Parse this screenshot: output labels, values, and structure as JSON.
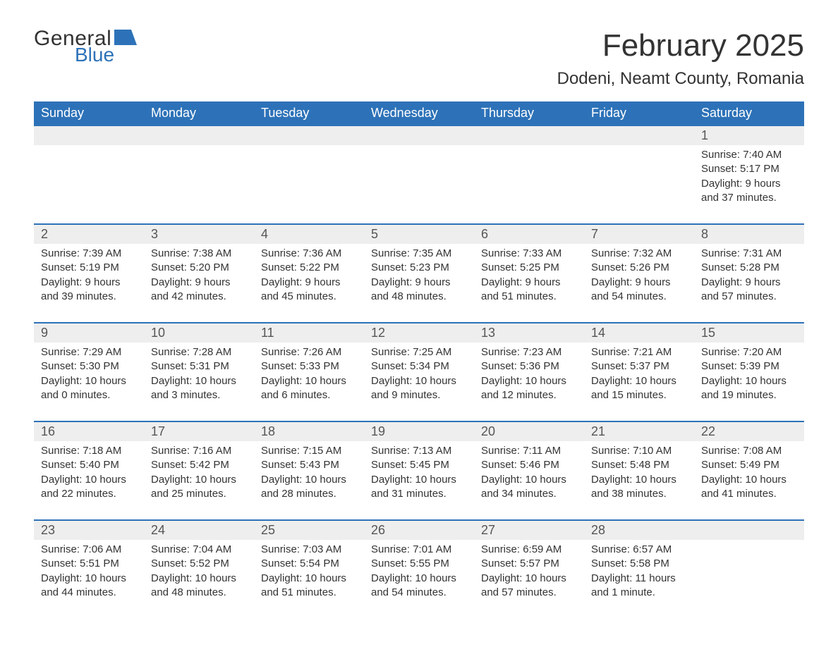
{
  "logo": {
    "word1": "General",
    "word2": "Blue"
  },
  "title": "February 2025",
  "location": "Dodeni, Neamt County, Romania",
  "colors": {
    "header_bg": "#2d72b8",
    "header_text": "#ffffff",
    "daynum_bg": "#eeeeee",
    "daynum_border": "#2d72b8",
    "body_text": "#333333",
    "logo_blue": "#2d72b8"
  },
  "weekdays": [
    "Sunday",
    "Monday",
    "Tuesday",
    "Wednesday",
    "Thursday",
    "Friday",
    "Saturday"
  ],
  "weeks": [
    [
      null,
      null,
      null,
      null,
      null,
      null,
      {
        "n": "1",
        "sr": "Sunrise: 7:40 AM",
        "ss": "Sunset: 5:17 PM",
        "dl": "Daylight: 9 hours and 37 minutes."
      }
    ],
    [
      {
        "n": "2",
        "sr": "Sunrise: 7:39 AM",
        "ss": "Sunset: 5:19 PM",
        "dl": "Daylight: 9 hours and 39 minutes."
      },
      {
        "n": "3",
        "sr": "Sunrise: 7:38 AM",
        "ss": "Sunset: 5:20 PM",
        "dl": "Daylight: 9 hours and 42 minutes."
      },
      {
        "n": "4",
        "sr": "Sunrise: 7:36 AM",
        "ss": "Sunset: 5:22 PM",
        "dl": "Daylight: 9 hours and 45 minutes."
      },
      {
        "n": "5",
        "sr": "Sunrise: 7:35 AM",
        "ss": "Sunset: 5:23 PM",
        "dl": "Daylight: 9 hours and 48 minutes."
      },
      {
        "n": "6",
        "sr": "Sunrise: 7:33 AM",
        "ss": "Sunset: 5:25 PM",
        "dl": "Daylight: 9 hours and 51 minutes."
      },
      {
        "n": "7",
        "sr": "Sunrise: 7:32 AM",
        "ss": "Sunset: 5:26 PM",
        "dl": "Daylight: 9 hours and 54 minutes."
      },
      {
        "n": "8",
        "sr": "Sunrise: 7:31 AM",
        "ss": "Sunset: 5:28 PM",
        "dl": "Daylight: 9 hours and 57 minutes."
      }
    ],
    [
      {
        "n": "9",
        "sr": "Sunrise: 7:29 AM",
        "ss": "Sunset: 5:30 PM",
        "dl": "Daylight: 10 hours and 0 minutes."
      },
      {
        "n": "10",
        "sr": "Sunrise: 7:28 AM",
        "ss": "Sunset: 5:31 PM",
        "dl": "Daylight: 10 hours and 3 minutes."
      },
      {
        "n": "11",
        "sr": "Sunrise: 7:26 AM",
        "ss": "Sunset: 5:33 PM",
        "dl": "Daylight: 10 hours and 6 minutes."
      },
      {
        "n": "12",
        "sr": "Sunrise: 7:25 AM",
        "ss": "Sunset: 5:34 PM",
        "dl": "Daylight: 10 hours and 9 minutes."
      },
      {
        "n": "13",
        "sr": "Sunrise: 7:23 AM",
        "ss": "Sunset: 5:36 PM",
        "dl": "Daylight: 10 hours and 12 minutes."
      },
      {
        "n": "14",
        "sr": "Sunrise: 7:21 AM",
        "ss": "Sunset: 5:37 PM",
        "dl": "Daylight: 10 hours and 15 minutes."
      },
      {
        "n": "15",
        "sr": "Sunrise: 7:20 AM",
        "ss": "Sunset: 5:39 PM",
        "dl": "Daylight: 10 hours and 19 minutes."
      }
    ],
    [
      {
        "n": "16",
        "sr": "Sunrise: 7:18 AM",
        "ss": "Sunset: 5:40 PM",
        "dl": "Daylight: 10 hours and 22 minutes."
      },
      {
        "n": "17",
        "sr": "Sunrise: 7:16 AM",
        "ss": "Sunset: 5:42 PM",
        "dl": "Daylight: 10 hours and 25 minutes."
      },
      {
        "n": "18",
        "sr": "Sunrise: 7:15 AM",
        "ss": "Sunset: 5:43 PM",
        "dl": "Daylight: 10 hours and 28 minutes."
      },
      {
        "n": "19",
        "sr": "Sunrise: 7:13 AM",
        "ss": "Sunset: 5:45 PM",
        "dl": "Daylight: 10 hours and 31 minutes."
      },
      {
        "n": "20",
        "sr": "Sunrise: 7:11 AM",
        "ss": "Sunset: 5:46 PM",
        "dl": "Daylight: 10 hours and 34 minutes."
      },
      {
        "n": "21",
        "sr": "Sunrise: 7:10 AM",
        "ss": "Sunset: 5:48 PM",
        "dl": "Daylight: 10 hours and 38 minutes."
      },
      {
        "n": "22",
        "sr": "Sunrise: 7:08 AM",
        "ss": "Sunset: 5:49 PM",
        "dl": "Daylight: 10 hours and 41 minutes."
      }
    ],
    [
      {
        "n": "23",
        "sr": "Sunrise: 7:06 AM",
        "ss": "Sunset: 5:51 PM",
        "dl": "Daylight: 10 hours and 44 minutes."
      },
      {
        "n": "24",
        "sr": "Sunrise: 7:04 AM",
        "ss": "Sunset: 5:52 PM",
        "dl": "Daylight: 10 hours and 48 minutes."
      },
      {
        "n": "25",
        "sr": "Sunrise: 7:03 AM",
        "ss": "Sunset: 5:54 PM",
        "dl": "Daylight: 10 hours and 51 minutes."
      },
      {
        "n": "26",
        "sr": "Sunrise: 7:01 AM",
        "ss": "Sunset: 5:55 PM",
        "dl": "Daylight: 10 hours and 54 minutes."
      },
      {
        "n": "27",
        "sr": "Sunrise: 6:59 AM",
        "ss": "Sunset: 5:57 PM",
        "dl": "Daylight: 10 hours and 57 minutes."
      },
      {
        "n": "28",
        "sr": "Sunrise: 6:57 AM",
        "ss": "Sunset: 5:58 PM",
        "dl": "Daylight: 11 hours and 1 minute."
      },
      null
    ]
  ]
}
